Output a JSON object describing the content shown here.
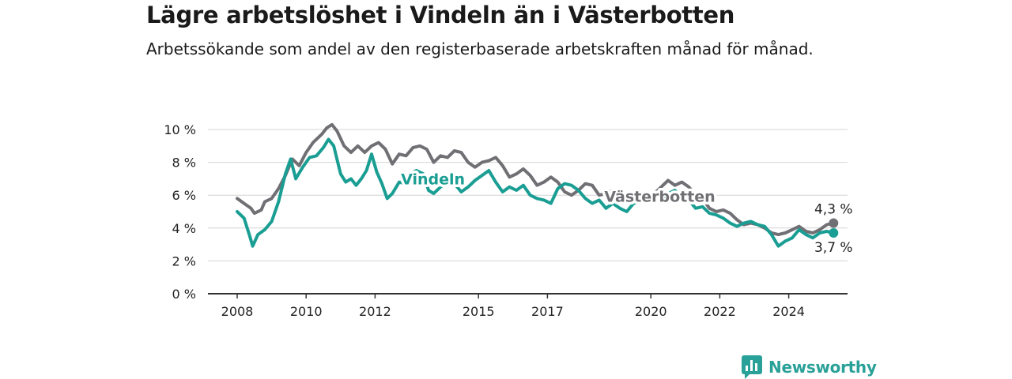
{
  "header": {
    "title": "Lägre arbetslöshet i Vindeln än i Västerbotten",
    "subtitle": "Arbetssökande som andel av den registerbaserade arbetskraften månad för månad."
  },
  "brand": {
    "name": "Newsworthy",
    "color": "#2aa198",
    "icon": "bar-chart-logo-icon"
  },
  "colors": {
    "vindeln": "#1a9e93",
    "vasterbotten": "#706f74",
    "grid": "#d4d4d4",
    "axis": "#333333"
  },
  "chart_data": {
    "type": "line",
    "title": "Lägre arbetslöshet i Vindeln än i Västerbotten",
    "subtitle": "Arbetssökande som andel av den registerbaserade arbetskraften månad för månad.",
    "x_unit": "year (decimal)",
    "xlim": [
      2007.0,
      2025.65
    ],
    "ylim": [
      0,
      10.5
    ],
    "y_ticks": [
      0,
      2,
      4,
      6,
      8,
      10
    ],
    "y_tick_labels": [
      "0 %",
      "2 %",
      "4 %",
      "6 %",
      "8 %",
      "10 %"
    ],
    "x_ticks": [
      2008,
      2010,
      2012,
      2015,
      2017,
      2020,
      2022,
      2024
    ],
    "x_tick_labels": [
      "2008",
      "2010",
      "2012",
      "2015",
      "2017",
      "2020",
      "2022",
      "2024"
    ],
    "grid": true,
    "legend": "inline labels",
    "series": [
      {
        "name": "Västerbotten",
        "end_label": "4,3 %",
        "points": [
          [
            2008.0,
            5.8
          ],
          [
            2008.2,
            5.5
          ],
          [
            2008.4,
            5.2
          ],
          [
            2008.5,
            4.9
          ],
          [
            2008.7,
            5.1
          ],
          [
            2008.8,
            5.6
          ],
          [
            2009.0,
            5.8
          ],
          [
            2009.2,
            6.4
          ],
          [
            2009.4,
            7.2
          ],
          [
            2009.6,
            8.2
          ],
          [
            2009.8,
            7.8
          ],
          [
            2010.0,
            8.6
          ],
          [
            2010.2,
            9.2
          ],
          [
            2010.45,
            9.7
          ],
          [
            2010.6,
            10.1
          ],
          [
            2010.75,
            10.3
          ],
          [
            2010.9,
            9.9
          ],
          [
            2011.1,
            9.0
          ],
          [
            2011.3,
            8.6
          ],
          [
            2011.5,
            9.0
          ],
          [
            2011.7,
            8.6
          ],
          [
            2011.9,
            9.0
          ],
          [
            2012.1,
            9.2
          ],
          [
            2012.3,
            8.8
          ],
          [
            2012.5,
            7.9
          ],
          [
            2012.7,
            8.5
          ],
          [
            2012.9,
            8.4
          ],
          [
            2013.1,
            8.9
          ],
          [
            2013.3,
            9.0
          ],
          [
            2013.5,
            8.8
          ],
          [
            2013.7,
            8.0
          ],
          [
            2013.9,
            8.4
          ],
          [
            2014.1,
            8.3
          ],
          [
            2014.3,
            8.7
          ],
          [
            2014.5,
            8.6
          ],
          [
            2014.7,
            8.0
          ],
          [
            2014.9,
            7.7
          ],
          [
            2015.1,
            8.0
          ],
          [
            2015.3,
            8.1
          ],
          [
            2015.5,
            8.3
          ],
          [
            2015.7,
            7.8
          ],
          [
            2015.9,
            7.1
          ],
          [
            2016.1,
            7.3
          ],
          [
            2016.3,
            7.6
          ],
          [
            2016.5,
            7.2
          ],
          [
            2016.7,
            6.6
          ],
          [
            2016.9,
            6.8
          ],
          [
            2017.1,
            7.1
          ],
          [
            2017.3,
            6.8
          ],
          [
            2017.5,
            6.2
          ],
          [
            2017.7,
            6.0
          ],
          [
            2017.9,
            6.3
          ],
          [
            2018.1,
            6.7
          ],
          [
            2018.3,
            6.6
          ],
          [
            2018.5,
            6.0
          ],
          [
            2018.7,
            6.1
          ],
          [
            2018.9,
            6.3
          ],
          [
            2019.1,
            6.0
          ],
          [
            2019.3,
            5.8
          ],
          [
            2019.5,
            5.9
          ],
          [
            2019.7,
            6.0
          ],
          [
            2019.9,
            5.9
          ],
          [
            2020.1,
            6.1
          ],
          [
            2020.3,
            6.5
          ],
          [
            2020.5,
            6.9
          ],
          [
            2020.7,
            6.6
          ],
          [
            2020.9,
            6.8
          ],
          [
            2021.1,
            6.5
          ],
          [
            2021.3,
            6.0
          ],
          [
            2021.5,
            5.8
          ],
          [
            2021.7,
            5.2
          ],
          [
            2021.9,
            5.0
          ],
          [
            2022.1,
            5.1
          ],
          [
            2022.3,
            4.9
          ],
          [
            2022.5,
            4.5
          ],
          [
            2022.7,
            4.2
          ],
          [
            2022.9,
            4.3
          ],
          [
            2023.1,
            4.2
          ],
          [
            2023.3,
            4.0
          ],
          [
            2023.5,
            3.7
          ],
          [
            2023.7,
            3.6
          ],
          [
            2023.9,
            3.7
          ],
          [
            2024.1,
            3.9
          ],
          [
            2024.3,
            4.1
          ],
          [
            2024.5,
            3.8
          ],
          [
            2024.7,
            3.7
          ],
          [
            2024.9,
            3.9
          ],
          [
            2025.1,
            4.2
          ],
          [
            2025.3,
            4.3
          ]
        ]
      },
      {
        "name": "Vindeln",
        "end_label": "3,7 %",
        "points": [
          [
            2008.0,
            5.0
          ],
          [
            2008.2,
            4.6
          ],
          [
            2008.35,
            3.6
          ],
          [
            2008.45,
            2.9
          ],
          [
            2008.6,
            3.6
          ],
          [
            2008.8,
            3.9
          ],
          [
            2009.0,
            4.4
          ],
          [
            2009.2,
            5.6
          ],
          [
            2009.4,
            7.3
          ],
          [
            2009.55,
            8.2
          ],
          [
            2009.7,
            7.0
          ],
          [
            2009.9,
            7.7
          ],
          [
            2010.1,
            8.3
          ],
          [
            2010.3,
            8.4
          ],
          [
            2010.5,
            8.9
          ],
          [
            2010.65,
            9.4
          ],
          [
            2010.8,
            9.0
          ],
          [
            2011.0,
            7.3
          ],
          [
            2011.15,
            6.8
          ],
          [
            2011.3,
            7.0
          ],
          [
            2011.45,
            6.6
          ],
          [
            2011.6,
            7.0
          ],
          [
            2011.75,
            7.5
          ],
          [
            2011.9,
            8.5
          ],
          [
            2012.05,
            7.4
          ],
          [
            2012.2,
            6.7
          ],
          [
            2012.35,
            5.8
          ],
          [
            2012.5,
            6.1
          ],
          [
            2012.7,
            6.8
          ],
          [
            2012.85,
            6.7
          ],
          [
            2013.0,
            7.3
          ],
          [
            2013.2,
            7.5
          ],
          [
            2013.4,
            7.3
          ],
          [
            2013.55,
            6.3
          ],
          [
            2013.7,
            6.1
          ],
          [
            2013.9,
            6.5
          ],
          [
            2014.1,
            6.8
          ],
          [
            2014.3,
            6.7
          ],
          [
            2014.5,
            6.2
          ],
          [
            2014.7,
            6.5
          ],
          [
            2014.9,
            6.9
          ],
          [
            2015.1,
            7.2
          ],
          [
            2015.3,
            7.5
          ],
          [
            2015.5,
            6.8
          ],
          [
            2015.7,
            6.2
          ],
          [
            2015.9,
            6.5
          ],
          [
            2016.1,
            6.3
          ],
          [
            2016.3,
            6.6
          ],
          [
            2016.5,
            6.0
          ],
          [
            2016.7,
            5.8
          ],
          [
            2016.9,
            5.7
          ],
          [
            2017.1,
            5.5
          ],
          [
            2017.3,
            6.4
          ],
          [
            2017.5,
            6.7
          ],
          [
            2017.7,
            6.6
          ],
          [
            2017.9,
            6.3
          ],
          [
            2018.1,
            5.8
          ],
          [
            2018.3,
            5.5
          ],
          [
            2018.5,
            5.7
          ],
          [
            2018.7,
            5.2
          ],
          [
            2018.9,
            5.5
          ],
          [
            2019.1,
            5.2
          ],
          [
            2019.3,
            5.0
          ],
          [
            2019.5,
            5.5
          ],
          [
            2019.7,
            5.6
          ],
          [
            2019.9,
            5.7
          ],
          [
            2020.1,
            5.9
          ],
          [
            2020.3,
            5.6
          ],
          [
            2020.5,
            6.1
          ],
          [
            2020.7,
            6.3
          ],
          [
            2020.9,
            5.8
          ],
          [
            2021.1,
            5.7
          ],
          [
            2021.3,
            5.2
          ],
          [
            2021.5,
            5.3
          ],
          [
            2021.7,
            4.9
          ],
          [
            2021.9,
            4.8
          ],
          [
            2022.1,
            4.6
          ],
          [
            2022.3,
            4.3
          ],
          [
            2022.5,
            4.1
          ],
          [
            2022.7,
            4.3
          ],
          [
            2022.9,
            4.4
          ],
          [
            2023.1,
            4.2
          ],
          [
            2023.3,
            4.1
          ],
          [
            2023.5,
            3.6
          ],
          [
            2023.7,
            2.9
          ],
          [
            2023.9,
            3.2
          ],
          [
            2024.1,
            3.4
          ],
          [
            2024.3,
            3.9
          ],
          [
            2024.5,
            3.6
          ],
          [
            2024.7,
            3.4
          ],
          [
            2024.9,
            3.7
          ],
          [
            2025.1,
            3.8
          ],
          [
            2025.3,
            3.7
          ]
        ]
      }
    ]
  }
}
